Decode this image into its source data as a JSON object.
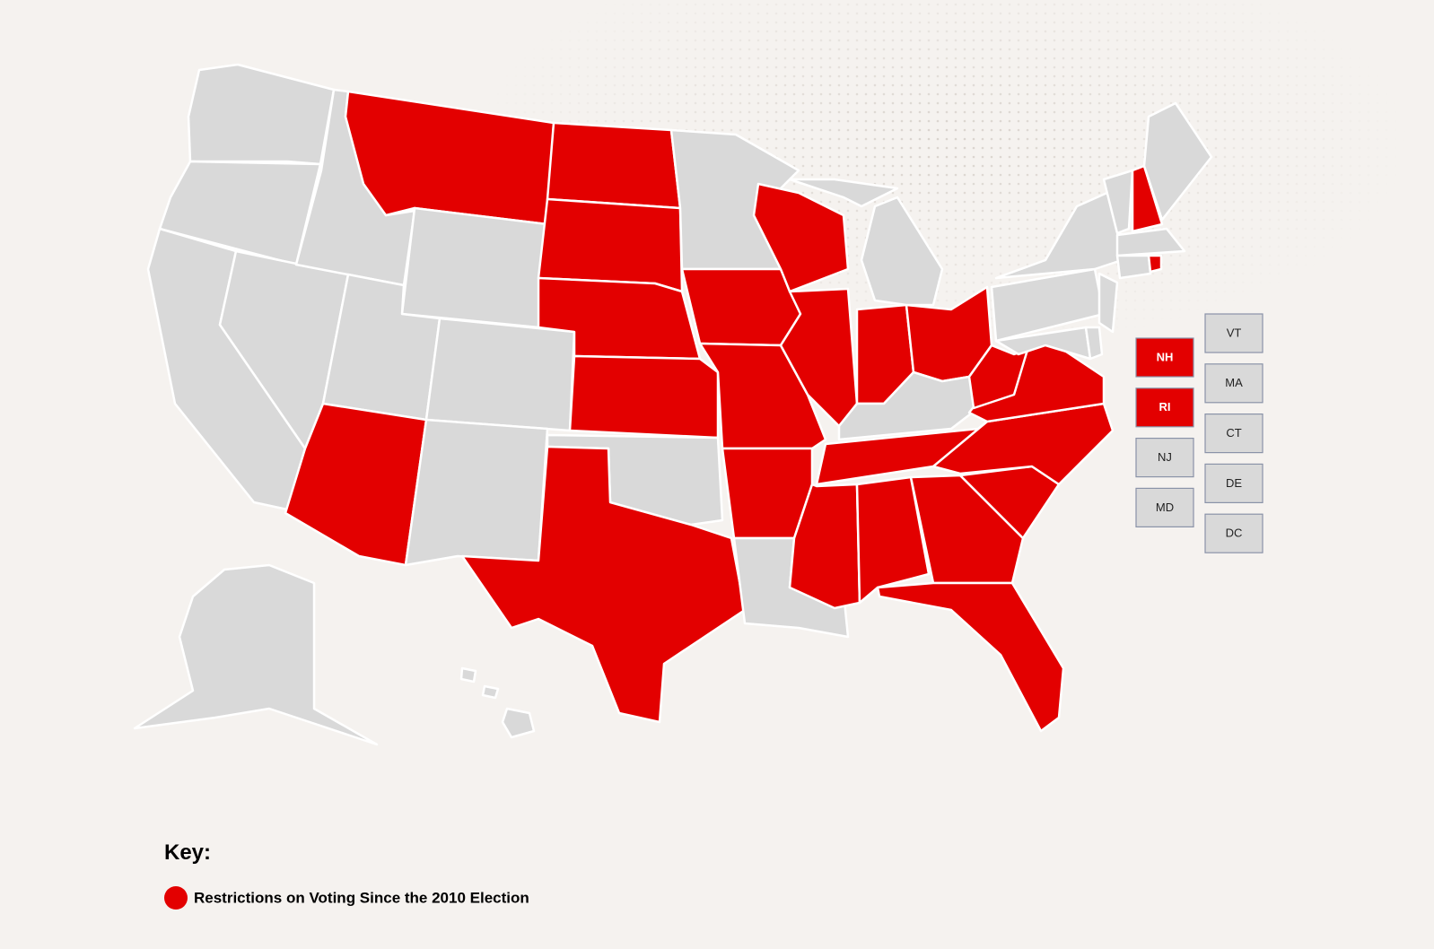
{
  "map": {
    "colors": {
      "restricted": "#e30000",
      "other": "#d9d9d9",
      "background": "#f5f2ef"
    },
    "small_states": [
      [
        {
          "label": "NH",
          "restricted": true
        },
        {
          "label": "RI",
          "restricted": true
        },
        {
          "label": "NJ",
          "restricted": false
        },
        {
          "label": "MD",
          "restricted": false
        }
      ],
      [
        {
          "label": "VT",
          "restricted": false
        },
        {
          "label": "MA",
          "restricted": false
        },
        {
          "label": "CT",
          "restricted": false
        },
        {
          "label": "DE",
          "restricted": false
        },
        {
          "label": "DC",
          "restricted": false
        }
      ]
    ],
    "key": {
      "title": "Key:",
      "label": "Restrictions on Voting Since the 2010 Election"
    }
  }
}
